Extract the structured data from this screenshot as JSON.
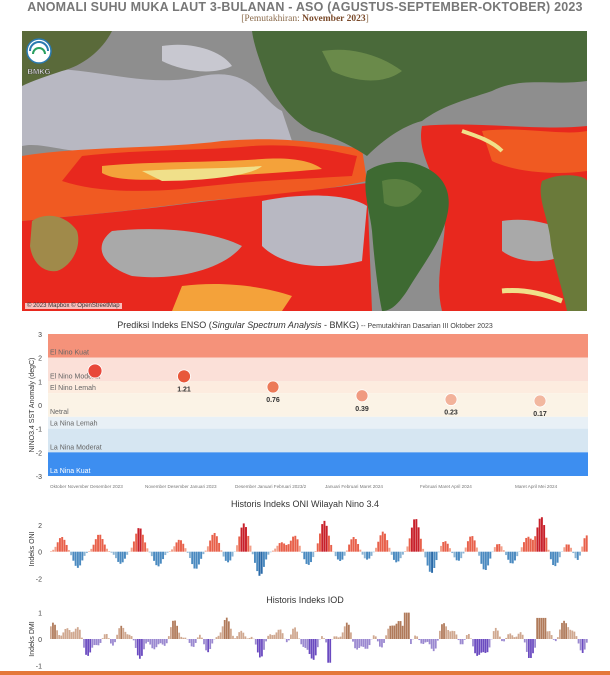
{
  "header": {
    "title": "ANOMALI SUHU MUKA LAUT 3-BULANAN - ASO (AGUSTUS-SEPTEMBER-OKTOBER) 2023",
    "update_label": "[Pemutakhiran:",
    "update_value": "November 2023",
    "update_close": "]"
  },
  "map": {
    "logo_text": "BMKG",
    "attribution": "© 2023 Mapbox © OpenStreetMap",
    "colors": {
      "ocean_neutral": "#a9a9a9",
      "land": "#4a6a3a",
      "warm1": "#f0e08a",
      "warm2": "#f4a23a",
      "warm3": "#f05a22",
      "warm4": "#e8281e",
      "cool": "#c8c8d0"
    }
  },
  "enso_chart": {
    "title_prefix": "Prediksi Indeks ENSO (",
    "title_italic": "Singular Spectrum Analysis",
    "title_mid": " - BMKG)",
    "title_suffix": " -- Pemutakhiran Dasarian III Oktober 2023"
  },
  "oni_chart": {
    "title": "Historis Indeks ONI Wilayah Nino 3.4",
    "ylabel": "Indeks ONI"
  },
  "iod_chart": {
    "title": "Historis Indeks IOD",
    "ylabel": "Indeks DMI"
  },
  "chart_data": [
    {
      "type": "scatter",
      "ylabel": "NINO3.4 SST Anomaly (degC)",
      "ylim": [
        -3,
        3
      ],
      "yticks": [
        3,
        2,
        1,
        0,
        -1,
        -2,
        -3
      ],
      "categories": [
        "Oktober November Desember 2023",
        "November Desember Januari 2023",
        "Desember Januari Februari 2023/2",
        "Januari Februari Maret 2024",
        "Februari Maret April 2024",
        "Maret April Mei 2024"
      ],
      "values": [
        1.44,
        1.21,
        0.76,
        0.39,
        0.23,
        0.17
      ],
      "labels": [
        "",
        "1.21",
        "0.76",
        "0.39",
        "0.23",
        "0.17"
      ],
      "bands": [
        {
          "name": "El Nino Kuat",
          "from": 2,
          "to": 3.2,
          "color": "#f5927a"
        },
        {
          "name": "El Nino Moderat",
          "from": 1,
          "to": 2,
          "color": "#fbe0d8"
        },
        {
          "name": "El Nino Lemah",
          "from": 0.5,
          "to": 1,
          "color": "#fdecdf"
        },
        {
          "name": "Netral",
          "from": -0.5,
          "to": 0.5,
          "color": "#fbf3e6"
        },
        {
          "name": "La Nina Lemah",
          "from": -1,
          "to": -0.5,
          "color": "#e8f0f6"
        },
        {
          "name": "La Nina Moderat",
          "from": -2,
          "to": -1,
          "color": "#d6e6f2"
        },
        {
          "name": "La Nina Kuat",
          "from": -3.2,
          "to": -2,
          "color": "#3d8ef0"
        }
      ],
      "point_colors": [
        "#e8483a",
        "#e8583a",
        "#ec7a58",
        "#f09a80",
        "#f2b29a",
        "#f2b8a0"
      ]
    },
    {
      "type": "bar",
      "title": "Historis Indeks ONI Wilayah Nino 3.4",
      "ylabel": "Indeks ONI",
      "ylim": [
        -2.4,
        2.8
      ],
      "yticks": [
        2,
        0,
        -2
      ],
      "series": [
        {
          "values": []
        }
      ],
      "peaks": [
        {
          "at": 0.02,
          "v": 1.1
        },
        {
          "at": 0.05,
          "v": -1.2
        },
        {
          "at": 0.09,
          "v": 1.3
        },
        {
          "at": 0.13,
          "v": -0.9
        },
        {
          "at": 0.165,
          "v": 1.8
        },
        {
          "at": 0.2,
          "v": -1.1
        },
        {
          "at": 0.24,
          "v": 0.9
        },
        {
          "at": 0.27,
          "v": -1.3
        },
        {
          "at": 0.305,
          "v": 1.4
        },
        {
          "at": 0.33,
          "v": -0.8
        },
        {
          "at": 0.36,
          "v": 2.1
        },
        {
          "at": 0.39,
          "v": -1.8
        },
        {
          "at": 0.43,
          "v": 0.7
        },
        {
          "at": 0.455,
          "v": 1.2
        },
        {
          "at": 0.48,
          "v": -1.0
        },
        {
          "at": 0.51,
          "v": 2.3
        },
        {
          "at": 0.54,
          "v": -0.7
        },
        {
          "at": 0.565,
          "v": 1.1
        },
        {
          "at": 0.59,
          "v": -0.6
        },
        {
          "at": 0.62,
          "v": 1.5
        },
        {
          "at": 0.645,
          "v": -0.8
        },
        {
          "at": 0.68,
          "v": 2.5
        },
        {
          "at": 0.71,
          "v": -1.6
        },
        {
          "at": 0.735,
          "v": 0.8
        },
        {
          "at": 0.76,
          "v": -0.7
        },
        {
          "at": 0.785,
          "v": 1.2
        },
        {
          "at": 0.81,
          "v": -1.4
        },
        {
          "at": 0.835,
          "v": 0.6
        },
        {
          "at": 0.86,
          "v": -0.9
        },
        {
          "at": 0.89,
          "v": 1.1
        },
        {
          "at": 0.915,
          "v": 2.6
        },
        {
          "at": 0.94,
          "v": -1.1
        },
        {
          "at": 0.965,
          "v": 0.6
        },
        {
          "at": 0.985,
          "v": -0.9
        },
        {
          "at": 0.998,
          "v": 1.4
        }
      ]
    },
    {
      "type": "bar",
      "title": "Historis Indeks IOD",
      "ylabel": "Indeks DMI",
      "ylim": [
        -1.1,
        1.1
      ],
      "yticks": [
        1,
        0,
        -1
      ],
      "series": [
        {
          "values": []
        }
      ]
    }
  ]
}
